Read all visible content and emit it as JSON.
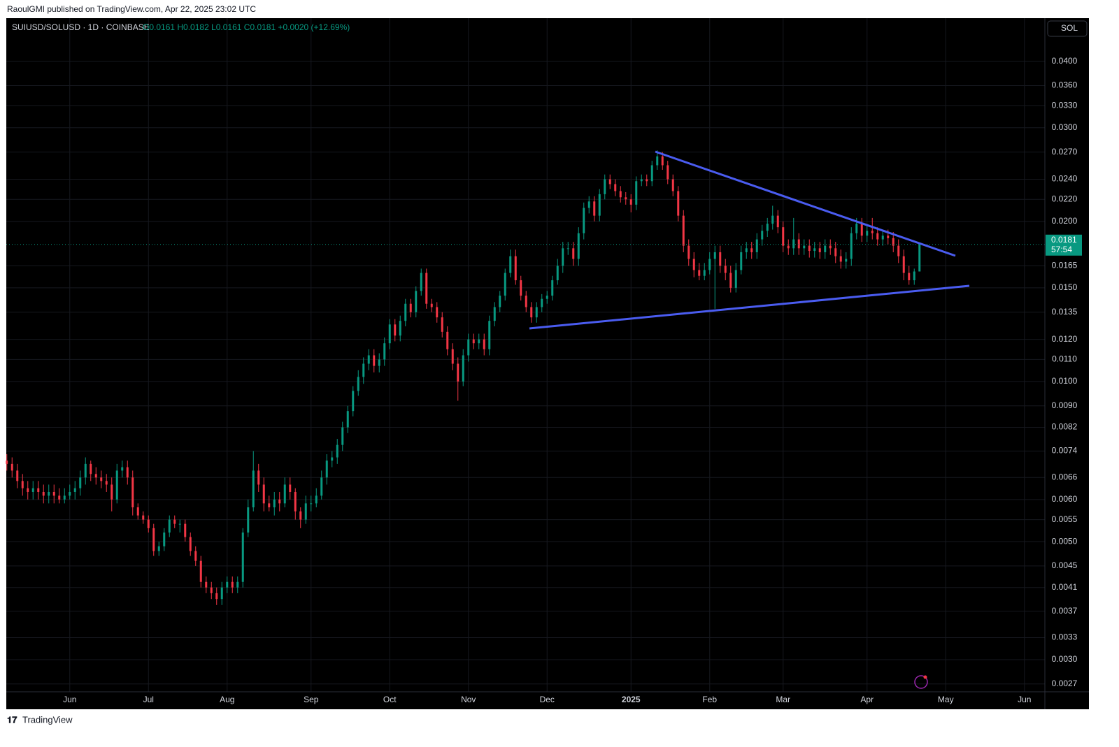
{
  "header": {
    "attribution": "RaoulGMI published on TradingView.com, Apr 22, 2025 23:02 UTC",
    "brand": "TradingView"
  },
  "chart_data": {
    "type": "candlestick",
    "symbol": "SUIUSD/SOLUSD · 1D · COINBASE",
    "ohlc_text": "O0.0161 H0.0182 L0.0161 C0.0181 +0.0020 (+12.69%)",
    "currency_button": "SOL",
    "countdown": "57:54",
    "categories": [
      null,
      null,
      null,
      null,
      null,
      null,
      null,
      null,
      null,
      null,
      null,
      null,
      "Jun",
      null,
      null,
      null,
      null,
      null,
      null,
      null,
      null,
      null,
      null,
      null,
      null,
      null,
      null,
      "Jul",
      null,
      null,
      null,
      null,
      null,
      null,
      null,
      null,
      null,
      null,
      null,
      null,
      null,
      null,
      "Aug",
      null,
      null,
      null,
      null,
      null,
      null,
      null,
      null,
      null,
      null,
      null,
      null,
      null,
      null,
      null,
      "Sep",
      null,
      null,
      null,
      null,
      null,
      null,
      null,
      null,
      null,
      null,
      null,
      null,
      null,
      null,
      "Oct",
      null,
      null,
      null,
      null,
      null,
      null,
      null,
      null,
      null,
      null,
      null,
      null,
      null,
      null,
      "Nov",
      null,
      null,
      null,
      null,
      null,
      null,
      null,
      null,
      null,
      null,
      null,
      null,
      null,
      null,
      "Dec",
      null,
      null,
      null,
      null,
      null,
      null,
      null,
      null,
      null,
      null,
      null,
      null,
      null,
      null,
      null,
      "2025",
      null,
      null,
      null,
      null,
      null,
      null,
      null,
      null,
      null,
      null,
      null,
      null,
      null,
      null,
      "Feb",
      null,
      null,
      null,
      null,
      null,
      null,
      null,
      null,
      null,
      null,
      null,
      null,
      null,
      "Mar",
      null,
      null,
      null,
      null,
      null,
      null,
      null,
      null,
      null,
      null,
      null,
      null,
      null,
      null,
      null,
      "Apr",
      null,
      null,
      null,
      null,
      null,
      null,
      null,
      null,
      null,
      null,
      null,
      null,
      null,
      null,
      "May",
      null,
      null,
      null,
      null,
      null,
      null,
      null,
      null,
      null,
      null,
      null,
      null,
      null,
      null,
      "Jun",
      null,
      null,
      null
    ],
    "open": [
      0.0071,
      0.007,
      0.0068,
      0.0065,
      0.0063,
      0.0062,
      0.0063,
      0.0062,
      0.0061,
      0.0062,
      0.0061,
      0.006,
      0.0061,
      0.0062,
      0.0063,
      0.0066,
      0.007,
      0.0067,
      0.0066,
      0.0065,
      0.0064,
      0.006,
      0.0068,
      0.0069,
      0.0066,
      0.0058,
      0.0056,
      0.0055,
      0.0053,
      0.0048,
      0.0049,
      0.0052,
      0.0055,
      0.0054,
      0.0054,
      0.0051,
      0.0048,
      0.0046,
      0.0042,
      0.0041,
      0.004,
      0.0039,
      0.0041,
      0.0042,
      0.0041,
      0.0042,
      0.0052,
      0.0058,
      0.0068,
      0.0064,
      0.0059,
      0.0058,
      0.006,
      0.0059,
      0.0064,
      0.0062,
      0.0057,
      0.0055,
      0.0059,
      0.0059,
      0.0061,
      0.0066,
      0.0071,
      0.0072,
      0.0076,
      0.0082,
      0.0088,
      0.0096,
      0.0102,
      0.0108,
      0.0112,
      0.0107,
      0.011,
      0.0118,
      0.0128,
      0.0122,
      0.013,
      0.014,
      0.0135,
      0.0148,
      0.016,
      0.014,
      0.0138,
      0.0132,
      0.0124,
      0.0115,
      0.0108,
      0.01,
      0.0112,
      0.012,
      0.0118,
      0.012,
      0.0115,
      0.013,
      0.0138,
      0.0145,
      0.016,
      0.0172,
      0.0155,
      0.0145,
      0.0138,
      0.0132,
      0.0138,
      0.0143,
      0.0145,
      0.0155,
      0.0165,
      0.0178,
      0.0178,
      0.017,
      0.019,
      0.0212,
      0.0218,
      0.0205,
      0.0225,
      0.024,
      0.0235,
      0.0228,
      0.0222,
      0.022,
      0.0215,
      0.0238,
      0.024,
      0.0238,
      0.0255,
      0.0265,
      0.0255,
      0.024,
      0.0228,
      0.0205,
      0.018,
      0.017,
      0.0162,
      0.0158,
      0.0162,
      0.017,
      0.0175,
      0.0165,
      0.016,
      0.015,
      0.0162,
      0.0175,
      0.0178,
      0.0175,
      0.0185,
      0.0192,
      0.0198,
      0.0205,
      0.0195,
      0.018,
      0.0178,
      0.0185,
      0.0178,
      0.018,
      0.0176,
      0.0178,
      0.0175,
      0.018,
      0.0178,
      0.0172,
      0.0168,
      0.017,
      0.019,
      0.0198,
      0.0188,
      0.0192,
      0.019,
      0.0185,
      0.0188,
      0.0186,
      0.018,
      0.0172,
      0.016,
      0.0155,
      0.0161,
      null,
      null,
      null,
      null,
      null,
      null,
      null,
      null,
      null,
      null,
      null,
      null,
      null,
      null,
      null,
      null,
      null,
      null,
      null,
      null,
      null,
      null,
      null
    ],
    "high": [
      0.0073,
      0.0072,
      0.007,
      0.0067,
      0.0065,
      0.0065,
      0.0065,
      0.0064,
      0.0064,
      0.0064,
      0.0063,
      0.0063,
      0.0064,
      0.0065,
      0.0068,
      0.0072,
      0.0071,
      0.0069,
      0.0068,
      0.0067,
      0.0066,
      0.007,
      0.0071,
      0.0071,
      0.0068,
      0.0059,
      0.0057,
      0.0056,
      0.0054,
      0.005,
      0.0053,
      0.0056,
      0.0056,
      0.0055,
      0.0055,
      0.0052,
      0.0049,
      0.0047,
      0.0043,
      0.0042,
      0.0041,
      0.0042,
      0.0043,
      0.0043,
      0.0043,
      0.0053,
      0.006,
      0.0074,
      0.007,
      0.0066,
      0.0061,
      0.0062,
      0.0062,
      0.0066,
      0.0066,
      0.0063,
      0.0058,
      0.0061,
      0.0061,
      0.0063,
      0.0068,
      0.0073,
      0.0074,
      0.0078,
      0.0084,
      0.009,
      0.0098,
      0.0105,
      0.0111,
      0.0115,
      0.0115,
      0.0113,
      0.0121,
      0.0131,
      0.0131,
      0.0133,
      0.0143,
      0.0143,
      0.0151,
      0.0163,
      0.0163,
      0.0143,
      0.0141,
      0.0135,
      0.0127,
      0.0118,
      0.0111,
      0.0115,
      0.0123,
      0.0123,
      0.0123,
      0.0123,
      0.0133,
      0.0141,
      0.0148,
      0.0163,
      0.0177,
      0.0177,
      0.0158,
      0.0148,
      0.0141,
      0.0141,
      0.0146,
      0.0148,
      0.0158,
      0.017,
      0.0183,
      0.0183,
      0.0183,
      0.0195,
      0.0217,
      0.0223,
      0.0223,
      0.023,
      0.0245,
      0.0245,
      0.024,
      0.0233,
      0.0227,
      0.0225,
      0.0243,
      0.0245,
      0.0245,
      0.026,
      0.0272,
      0.027,
      0.026,
      0.0245,
      0.0233,
      0.021,
      0.0185,
      0.0175,
      0.0167,
      0.0167,
      0.0175,
      0.018,
      0.018,
      0.017,
      0.0165,
      0.0167,
      0.018,
      0.0183,
      0.0183,
      0.019,
      0.0197,
      0.0203,
      0.0214,
      0.021,
      0.02,
      0.0185,
      0.0203,
      0.019,
      0.0185,
      0.0185,
      0.0183,
      0.0183,
      0.0185,
      0.0185,
      0.0183,
      0.0177,
      0.0175,
      0.0195,
      0.0203,
      0.0203,
      0.0197,
      0.0203,
      0.0195,
      0.0193,
      0.0193,
      0.0191,
      0.0185,
      0.0177,
      0.0165,
      0.0163,
      0.0182,
      null,
      null,
      null,
      null,
      null,
      null,
      null,
      null,
      null,
      null,
      null,
      null,
      null,
      null,
      null,
      null,
      null,
      null,
      null,
      null,
      null,
      null,
      null
    ],
    "low": [
      0.0068,
      0.0066,
      0.0063,
      0.0061,
      0.006,
      0.006,
      0.006,
      0.0059,
      0.0059,
      0.0059,
      0.0059,
      0.0059,
      0.006,
      0.006,
      0.0061,
      0.0064,
      0.0065,
      0.0064,
      0.0063,
      0.0062,
      0.0057,
      0.0059,
      0.0066,
      0.0064,
      0.0056,
      0.0055,
      0.0054,
      0.0052,
      0.0047,
      0.0047,
      0.0048,
      0.0051,
      0.0053,
      0.0052,
      0.005,
      0.0047,
      0.0045,
      0.0041,
      0.004,
      0.0039,
      0.0038,
      0.0038,
      0.004,
      0.004,
      0.004,
      0.0041,
      0.0051,
      0.0057,
      0.0062,
      0.0057,
      0.0057,
      0.0056,
      0.0057,
      0.0058,
      0.006,
      0.0055,
      0.0053,
      0.0054,
      0.0057,
      0.0058,
      0.006,
      0.0064,
      0.0069,
      0.007,
      0.0074,
      0.008,
      0.0086,
      0.0094,
      0.0099,
      0.0105,
      0.0104,
      0.0104,
      0.0107,
      0.0115,
      0.0119,
      0.0119,
      0.0127,
      0.0132,
      0.0132,
      0.0145,
      0.0137,
      0.0135,
      0.0129,
      0.0121,
      0.0112,
      0.0105,
      0.0092,
      0.0098,
      0.0109,
      0.0115,
      0.0115,
      0.0112,
      0.0112,
      0.0127,
      0.0135,
      0.0142,
      0.0157,
      0.0152,
      0.0142,
      0.0135,
      0.0129,
      0.0129,
      0.0135,
      0.014,
      0.0142,
      0.0152,
      0.016,
      0.0173,
      0.0165,
      0.0165,
      0.0185,
      0.0207,
      0.02,
      0.02,
      0.022,
      0.023,
      0.0223,
      0.0217,
      0.0215,
      0.0208,
      0.021,
      0.0233,
      0.0233,
      0.0233,
      0.025,
      0.025,
      0.0235,
      0.0223,
      0.02,
      0.0175,
      0.0165,
      0.0157,
      0.0155,
      0.0155,
      0.0159,
      0.0137,
      0.016,
      0.0155,
      0.0147,
      0.0147,
      0.0159,
      0.017,
      0.017,
      0.017,
      0.018,
      0.0187,
      0.0193,
      0.019,
      0.0175,
      0.0173,
      0.0173,
      0.0173,
      0.0173,
      0.0171,
      0.0171,
      0.017,
      0.017,
      0.0173,
      0.0167,
      0.0163,
      0.0163,
      0.0165,
      0.0185,
      0.0183,
      0.0183,
      0.0185,
      0.018,
      0.018,
      0.0181,
      0.0175,
      0.0167,
      0.0155,
      0.0152,
      0.0152,
      0.0161,
      null,
      null,
      null,
      null,
      null,
      null,
      null,
      null,
      null,
      null,
      null,
      null,
      null,
      null,
      null,
      null,
      null,
      null,
      null,
      null,
      null,
      null,
      null
    ],
    "close": [
      0.007,
      0.0068,
      0.0065,
      0.0063,
      0.0062,
      0.0063,
      0.0062,
      0.0061,
      0.0062,
      0.0061,
      0.006,
      0.0061,
      0.0062,
      0.0063,
      0.0066,
      0.007,
      0.0067,
      0.0066,
      0.0065,
      0.0064,
      0.006,
      0.0068,
      0.0069,
      0.0066,
      0.0058,
      0.0056,
      0.0055,
      0.0053,
      0.0048,
      0.0049,
      0.0052,
      0.0055,
      0.0054,
      0.0054,
      0.0051,
      0.0048,
      0.0046,
      0.0042,
      0.0041,
      0.004,
      0.0039,
      0.0041,
      0.0042,
      0.0041,
      0.0042,
      0.0052,
      0.0058,
      0.0068,
      0.0064,
      0.0059,
      0.0058,
      0.006,
      0.0059,
      0.0064,
      0.0062,
      0.0057,
      0.0055,
      0.0059,
      0.0059,
      0.0061,
      0.0066,
      0.0071,
      0.0072,
      0.0076,
      0.0082,
      0.0088,
      0.0096,
      0.0102,
      0.0108,
      0.0112,
      0.0107,
      0.011,
      0.0118,
      0.0128,
      0.0122,
      0.013,
      0.014,
      0.0135,
      0.0148,
      0.016,
      0.014,
      0.0138,
      0.0132,
      0.0124,
      0.0115,
      0.0108,
      0.01,
      0.0112,
      0.012,
      0.0118,
      0.012,
      0.0115,
      0.013,
      0.0138,
      0.0145,
      0.016,
      0.0172,
      0.0155,
      0.0145,
      0.0138,
      0.0132,
      0.0138,
      0.0143,
      0.0145,
      0.0155,
      0.0165,
      0.0178,
      0.0178,
      0.017,
      0.019,
      0.0212,
      0.0218,
      0.0205,
      0.0225,
      0.024,
      0.0235,
      0.0228,
      0.0222,
      0.022,
      0.0215,
      0.0238,
      0.024,
      0.0238,
      0.0255,
      0.0265,
      0.0255,
      0.024,
      0.0228,
      0.0205,
      0.018,
      0.017,
      0.0162,
      0.0158,
      0.0162,
      0.017,
      0.0175,
      0.0165,
      0.016,
      0.015,
      0.0162,
      0.0175,
      0.0178,
      0.0175,
      0.0185,
      0.0192,
      0.0198,
      0.0205,
      0.0195,
      0.018,
      0.0178,
      0.0185,
      0.0178,
      0.018,
      0.0176,
      0.0178,
      0.0175,
      0.018,
      0.0178,
      0.0172,
      0.0168,
      0.017,
      0.019,
      0.0198,
      0.0188,
      0.0192,
      0.019,
      0.0185,
      0.0188,
      0.0186,
      0.018,
      0.0172,
      0.016,
      0.0155,
      0.0161,
      0.0181,
      null,
      null,
      null,
      null,
      null,
      null,
      null,
      null,
      null,
      null,
      null,
      null,
      null,
      null,
      null,
      null,
      null,
      null,
      null,
      null,
      null,
      null,
      null
    ],
    "up_color": "#089981",
    "down_color": "#f23645",
    "log_scale": true,
    "grid": true,
    "ylim": [
      0.00261,
      0.0482
    ],
    "yticks": [
      {
        "value": 0.04,
        "label": "0.0400"
      },
      {
        "value": 0.036,
        "label": "0.0360"
      },
      {
        "value": 0.033,
        "label": "0.0330"
      },
      {
        "value": 0.03,
        "label": "0.0300"
      },
      {
        "value": 0.027,
        "label": "0.0270"
      },
      {
        "value": 0.024,
        "label": "0.0240"
      },
      {
        "value": 0.022,
        "label": "0.0220"
      },
      {
        "value": 0.02,
        "label": "0.0200"
      },
      {
        "value": 0.0165,
        "label": "0.0165"
      },
      {
        "value": 0.015,
        "label": "0.0150"
      },
      {
        "value": 0.0135,
        "label": "0.0135"
      },
      {
        "value": 0.012,
        "label": "0.0120"
      },
      {
        "value": 0.011,
        "label": "0.0110"
      },
      {
        "value": 0.01,
        "label": "0.0100"
      },
      {
        "value": 0.009,
        "label": "0.0090"
      },
      {
        "value": 0.0082,
        "label": "0.0082"
      },
      {
        "value": 0.0074,
        "label": "0.0074"
      },
      {
        "value": 0.0066,
        "label": "0.0066"
      },
      {
        "value": 0.006,
        "label": "0.0060"
      },
      {
        "value": 0.0055,
        "label": "0.0055"
      },
      {
        "value": 0.005,
        "label": "0.0050"
      },
      {
        "value": 0.0045,
        "label": "0.0045"
      },
      {
        "value": 0.0041,
        "label": "0.0041"
      },
      {
        "value": 0.0037,
        "label": "0.0037"
      },
      {
        "value": 0.0033,
        "label": "0.0033"
      },
      {
        "value": 0.003,
        "label": "0.0030"
      },
      {
        "value": 0.0027,
        "label": "0.0027"
      }
    ]
  }
}
